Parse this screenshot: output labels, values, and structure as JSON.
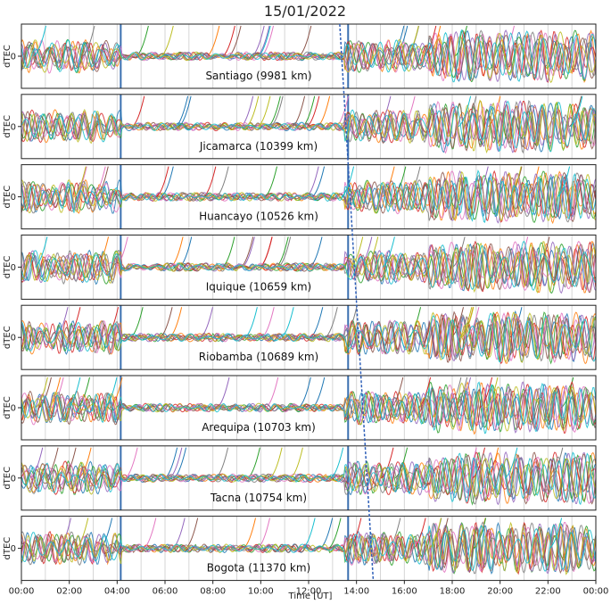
{
  "chart_data": {
    "type": "line",
    "title": "15/01/2022",
    "xlabel": "Time [UT]",
    "ylabel": "dTEC",
    "ytick": "0",
    "xlim": [
      0,
      24
    ],
    "x_ticks": [
      "00:00",
      "02:00",
      "04:00",
      "06:00",
      "08:00",
      "10:00",
      "12:00",
      "14:00",
      "16:00",
      "18:00",
      "20:00",
      "22:00",
      "00:00"
    ],
    "grid": true,
    "vertical_markers_hours": [
      4.15,
      13.65
    ],
    "propagation_front": {
      "start_hour": 13.3,
      "end_hour": 14.7
    },
    "panels": [
      {
        "station": "Santiago (9981 km)"
      },
      {
        "station": "Jicamarca (10399 km)"
      },
      {
        "station": "Huancayo (10526 km)"
      },
      {
        "station": "Iquique (10659 km)"
      },
      {
        "station": "Riobamba (10689 km)"
      },
      {
        "station": "Arequipa (10703 km)"
      },
      {
        "station": "Tacna (10754 km)"
      },
      {
        "station": "Bogota (11370 km)"
      }
    ],
    "series_colors": [
      "#1f77b4",
      "#ff7f0e",
      "#2ca02c",
      "#d62728",
      "#9467bd",
      "#8c564b",
      "#e377c2",
      "#7f7f7f",
      "#bcbd22",
      "#17becf"
    ]
  }
}
